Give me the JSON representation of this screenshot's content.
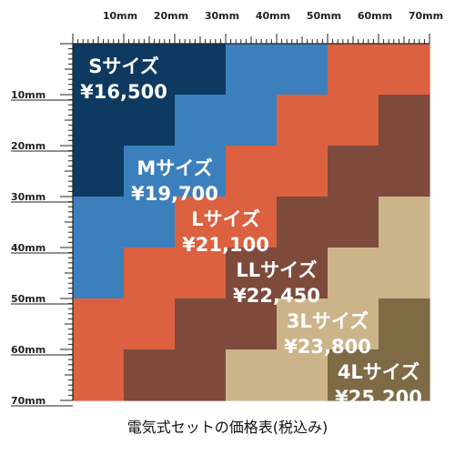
{
  "caption": "電気式セットの価格表(税込み)",
  "chart_data": {
    "type": "heatmap",
    "title": "電気式セットの価格表(税込み)",
    "x_ticks": [
      "10mm",
      "20mm",
      "30mm",
      "40mm",
      "50mm",
      "60mm",
      "70mm"
    ],
    "y_ticks": [
      "10mm",
      "20mm",
      "30mm",
      "40mm",
      "50mm",
      "60mm",
      "70mm"
    ],
    "x_range_mm": [
      0,
      70
    ],
    "y_range_mm": [
      0,
      70
    ],
    "cell_mm": 10,
    "grid": [
      [
        0,
        0,
        0,
        1,
        1,
        2,
        2
      ],
      [
        0,
        0,
        1,
        1,
        2,
        2,
        3
      ],
      [
        0,
        1,
        1,
        2,
        2,
        3,
        3
      ],
      [
        1,
        1,
        2,
        2,
        3,
        3,
        4
      ],
      [
        1,
        2,
        2,
        3,
        3,
        4,
        4
      ],
      [
        2,
        2,
        3,
        3,
        4,
        4,
        5
      ],
      [
        2,
        3,
        3,
        4,
        4,
        5,
        5
      ]
    ],
    "tiers": [
      {
        "name": "Sサイズ",
        "price": "¥16,500",
        "color": "#0e3961",
        "label_cell": [
          0,
          1
        ]
      },
      {
        "name": "Mサイズ",
        "price": "¥19,700",
        "color": "#3b80bd",
        "label_cell": [
          2,
          2
        ]
      },
      {
        "name": "Lサイズ",
        "price": "¥21,100",
        "color": "#dc6140",
        "label_cell": [
          3,
          3
        ]
      },
      {
        "name": "LLサイズ",
        "price": "¥22,450",
        "color": "#7d4a3c",
        "label_cell": [
          4,
          4
        ]
      },
      {
        "name": "3Lサイズ",
        "price": "¥23,800",
        "color": "#ccb48a",
        "label_cell": [
          5,
          5
        ]
      },
      {
        "name": "4Lサイズ",
        "price": "¥25,200",
        "color": "#7e6b45",
        "label_cell": [
          6,
          6
        ]
      }
    ]
  }
}
